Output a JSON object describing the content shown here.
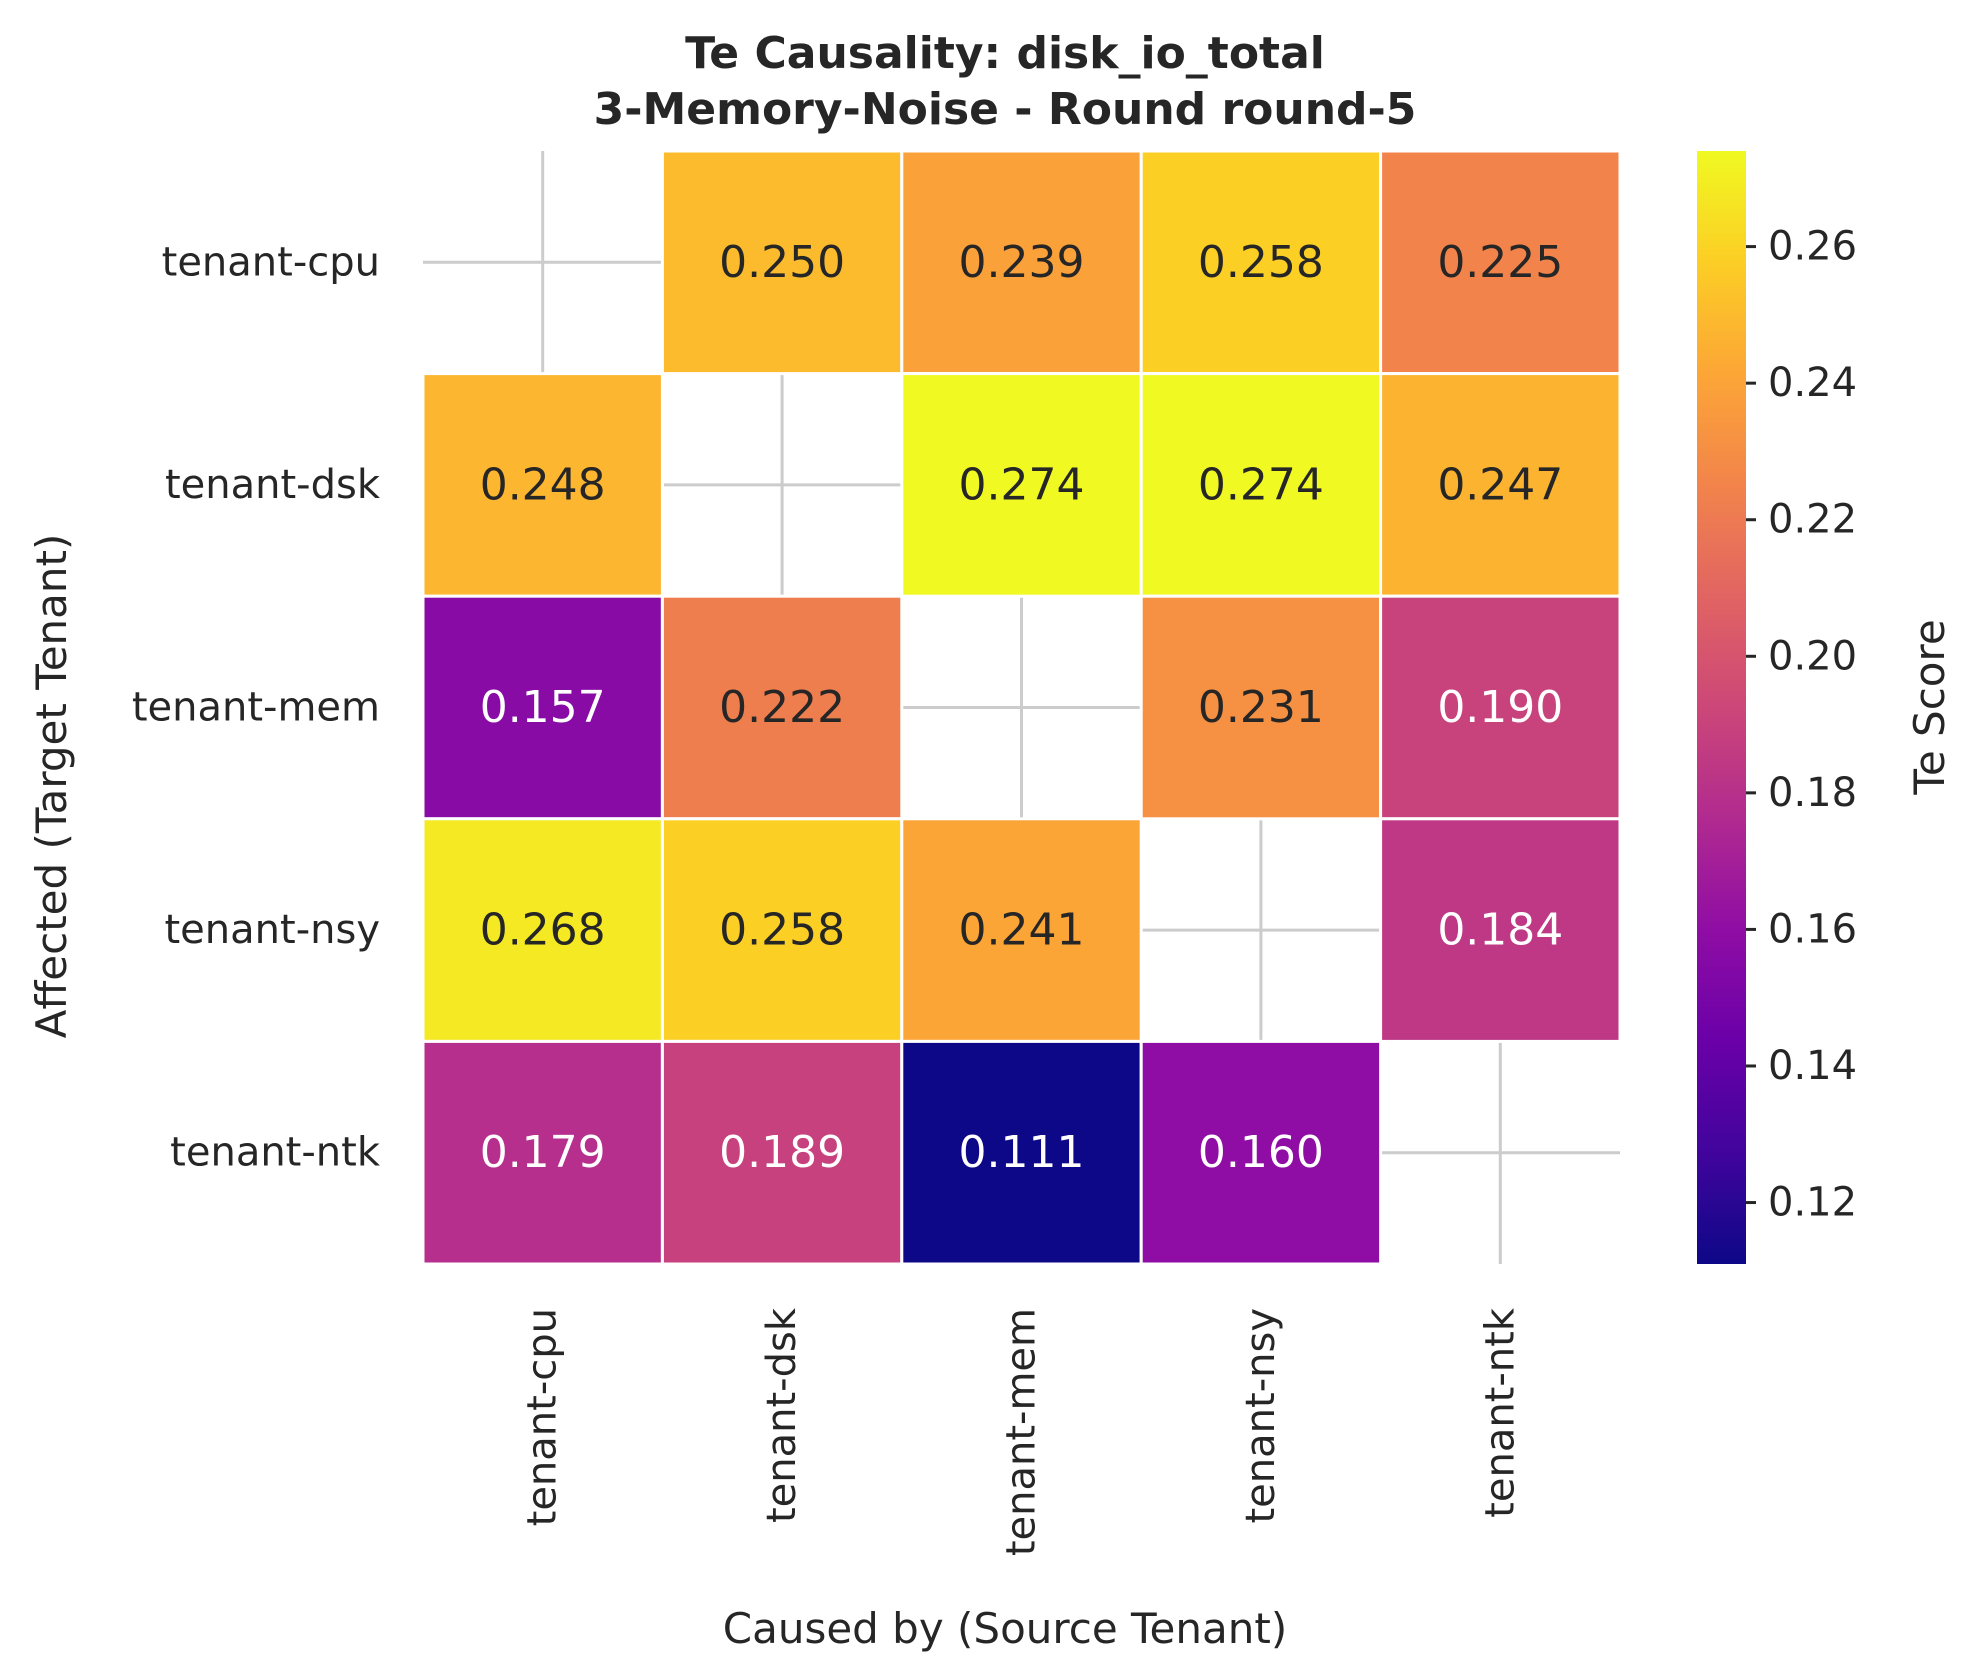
{
  "chart_data": {
    "type": "heatmap",
    "title": "Te Causality: disk_io_total",
    "subtitle": "3-Memory-Noise - Round round-5",
    "xlabel": "Caused by (Source Tenant)",
    "ylabel": "Affected (Target Tenant)",
    "x_categories": [
      "tenant-cpu",
      "tenant-dsk",
      "tenant-mem",
      "tenant-nsy",
      "tenant-ntk"
    ],
    "y_categories": [
      "tenant-cpu",
      "tenant-dsk",
      "tenant-mem",
      "tenant-nsy",
      "tenant-ntk"
    ],
    "values": [
      [
        null,
        0.25,
        0.239,
        0.258,
        0.225
      ],
      [
        0.248,
        null,
        0.274,
        0.274,
        0.247
      ],
      [
        0.157,
        0.222,
        null,
        0.231,
        0.19
      ],
      [
        0.268,
        0.258,
        0.241,
        null,
        0.184
      ],
      [
        0.179,
        0.189,
        0.111,
        0.16,
        null
      ]
    ],
    "value_labels": [
      [
        null,
        "0.250",
        "0.239",
        "0.258",
        "0.225"
      ],
      [
        "0.248",
        null,
        "0.274",
        "0.274",
        "0.247"
      ],
      [
        "0.157",
        "0.222",
        null,
        "0.231",
        "0.190"
      ],
      [
        "0.268",
        "0.258",
        "0.241",
        null,
        "0.184"
      ],
      [
        "0.179",
        "0.189",
        "0.111",
        "0.160",
        null
      ]
    ],
    "colorbar": {
      "label": "Te Score",
      "colormap": "plasma",
      "vmin": 0.111,
      "vmax": 0.274,
      "ticks": [
        0.12,
        0.14,
        0.16,
        0.18,
        0.2,
        0.22,
        0.24,
        0.26
      ],
      "tick_labels": [
        "0.12",
        "0.14",
        "0.16",
        "0.18",
        "0.20",
        "0.22",
        "0.24",
        "0.26"
      ]
    },
    "grid": true,
    "legend": "colorbar-right"
  }
}
